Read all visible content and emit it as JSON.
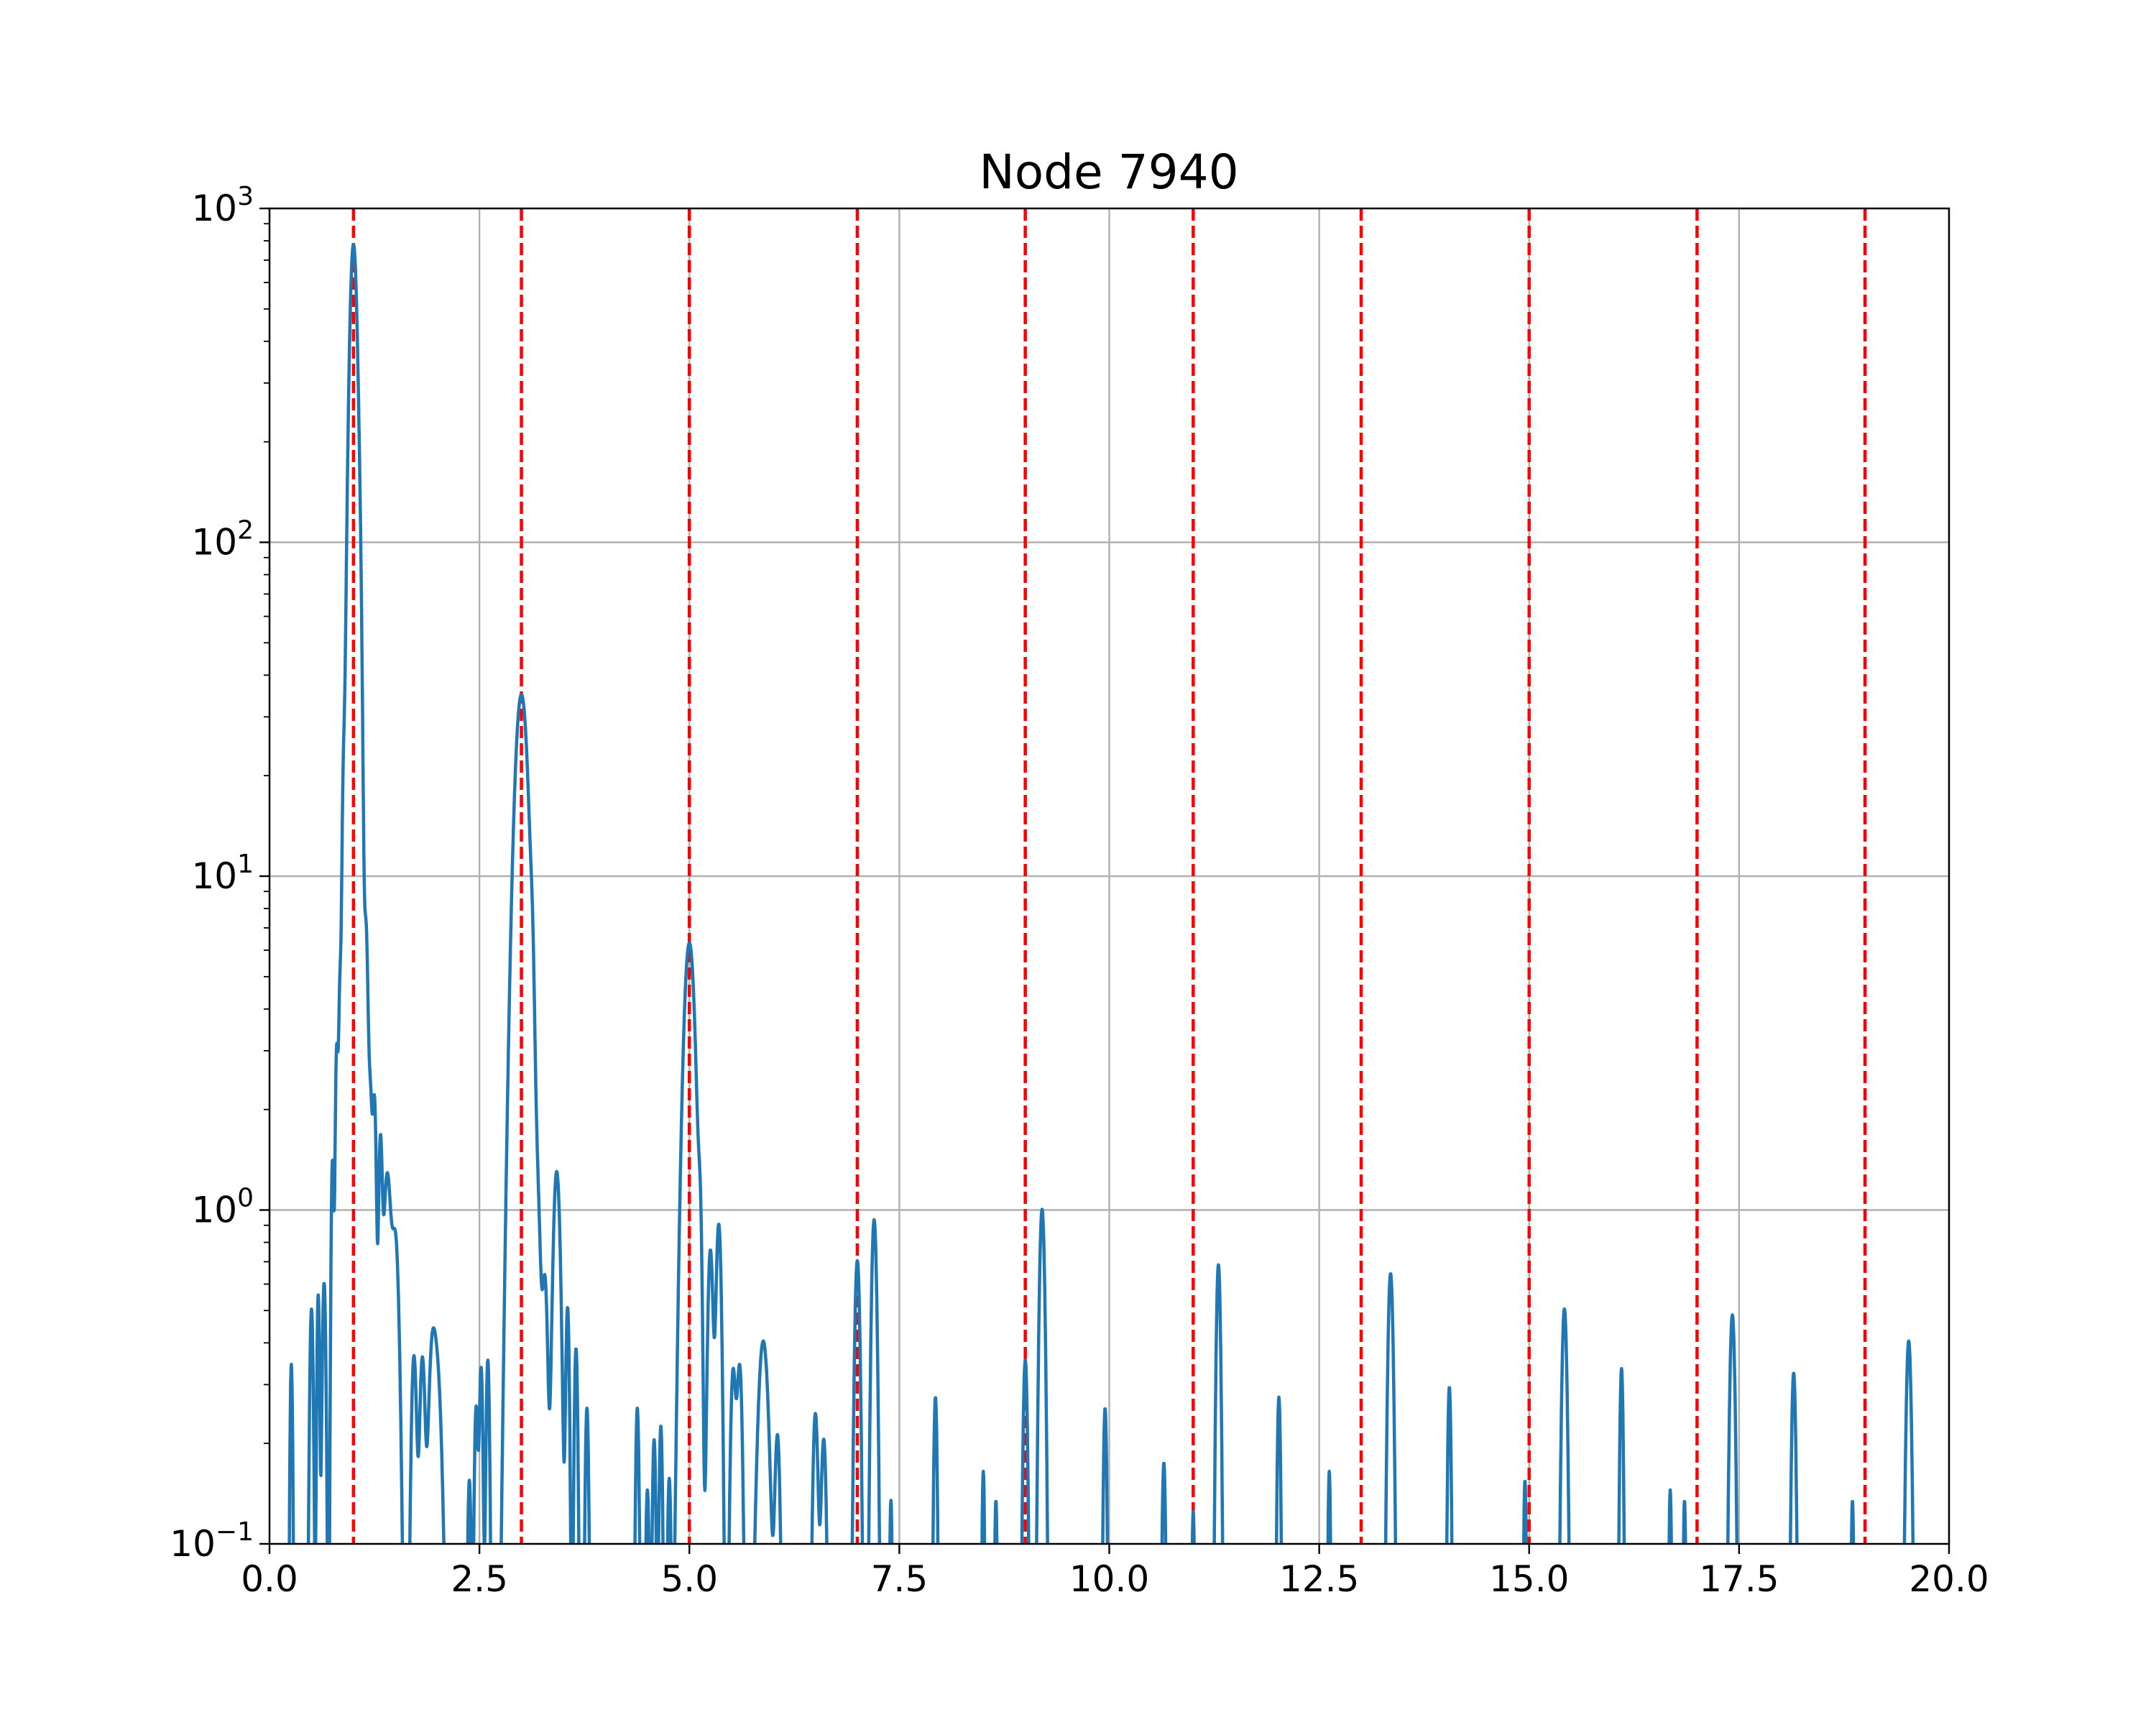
{
  "chart_data": {
    "type": "line",
    "title": "Node 7940",
    "xlabel": "",
    "ylabel": "",
    "xlim": [
      0,
      20
    ],
    "ylim": [
      0.1,
      1000
    ],
    "yscale": "log",
    "grid": true,
    "legend": "none",
    "x_ticks": [
      "0.0",
      "2.5",
      "5.0",
      "7.5",
      "10.0",
      "12.5",
      "15.0",
      "17.5",
      "20.0"
    ],
    "x_tick_values": [
      0,
      2.5,
      5,
      7.5,
      10,
      12.5,
      15,
      17.5,
      20
    ],
    "y_ticks": [
      {
        "base": "10",
        "exp": "−1",
        "value": 0.1
      },
      {
        "base": "10",
        "exp": "0",
        "value": 1
      },
      {
        "base": "10",
        "exp": "1",
        "value": 10
      },
      {
        "base": "10",
        "exp": "2",
        "value": 100
      },
      {
        "base": "10",
        "exp": "3",
        "value": 1000
      }
    ],
    "vlines": {
      "x": [
        1,
        3,
        5,
        7,
        9,
        11,
        13,
        15,
        17,
        19
      ],
      "color": "#ff0000",
      "style": "dashed"
    },
    "series": [
      {
        "color": "#1f77b4",
        "x": [
          0.2,
          0.24,
          0.28,
          0.32,
          0.4,
          0.45,
          0.5,
          0.53,
          0.56,
          0.6,
          0.63,
          0.66,
          0.7,
          0.72,
          0.74,
          0.78,
          0.8,
          0.83,
          0.86,
          0.89,
          0.92,
          0.95,
          0.97,
          1.0,
          1.02,
          1.05,
          1.08,
          1.1,
          1.13,
          1.16,
          1.18,
          1.2,
          1.23,
          1.26,
          1.29,
          1.32,
          1.35,
          1.4,
          1.45,
          1.5,
          1.53,
          1.57,
          1.6,
          1.65,
          1.72,
          1.77,
          1.82,
          1.86,
          1.9,
          1.95,
          2.0,
          2.05,
          2.1,
          2.15,
          2.2,
          2.3,
          2.38,
          2.42,
          2.46,
          2.5,
          2.54,
          2.58,
          2.62,
          2.66,
          2.7,
          2.75,
          2.8,
          2.85,
          2.9,
          2.95,
          3.0,
          3.05,
          3.1,
          3.15,
          3.2,
          3.25,
          3.3,
          3.35,
          3.4,
          3.45,
          3.5,
          3.55,
          3.6,
          3.65,
          3.7,
          3.75,
          3.8,
          3.85,
          3.9,
          3.95,
          4.0,
          4.1,
          4.3,
          4.38,
          4.42,
          4.46,
          4.5,
          4.55,
          4.6,
          4.65,
          4.7,
          4.75,
          4.8,
          4.86,
          4.9,
          4.95,
          5.0,
          5.03,
          5.06,
          5.1,
          5.15,
          5.2,
          5.25,
          5.3,
          5.35,
          5.4,
          5.45,
          5.5,
          5.55,
          5.6,
          5.65,
          5.7,
          5.75,
          5.8,
          5.85,
          5.9,
          5.95,
          6.0,
          6.05,
          6.1,
          6.15,
          6.2,
          6.3,
          6.38,
          6.45,
          6.5,
          6.55,
          6.6,
          6.65,
          6.72,
          6.8,
          6.86,
          6.9,
          6.95,
          7.0,
          7.05,
          7.1,
          7.15,
          7.2,
          7.25,
          7.3,
          7.4,
          7.44,
          7.5,
          7.7,
          7.85,
          7.9,
          7.93,
          7.97,
          8.0,
          8.3,
          8.45,
          8.5,
          8.53,
          8.57,
          8.65,
          8.7,
          8.8,
          8.9,
          8.95,
          9.0,
          9.05,
          9.1,
          9.15,
          9.2,
          9.25,
          9.3,
          9.35,
          9.4,
          9.45,
          9.5,
          9.55,
          9.6,
          9.7,
          9.8,
          9.9,
          9.95,
          10.0,
          10.05,
          10.1,
          10.5,
          10.6,
          10.65,
          10.7,
          10.8,
          10.95,
          11.0,
          11.05,
          11.15,
          11.25,
          11.3,
          11.35,
          11.45,
          11.6,
          11.85,
          11.95,
          12.0,
          12.05,
          12.1,
          12.3,
          12.55,
          12.6,
          12.65,
          12.7,
          12.8,
          13.2,
          13.28,
          13.33,
          13.38,
          13.45,
          13.5,
          13.55,
          13.6,
          13.7,
          13.9,
          14.0,
          14.05,
          14.1,
          14.15,
          14.3,
          14.5,
          14.9,
          14.95,
          15.0,
          15.05,
          15.1,
          15.3,
          15.35,
          15.4,
          15.45,
          15.55,
          15.9,
          15.98,
          16.02,
          16.08,
          16.12,
          16.18,
          16.25,
          16.5,
          16.65,
          16.7,
          16.75,
          16.8,
          16.85,
          16.9,
          17.0,
          17.25,
          17.35,
          17.4,
          17.45,
          17.5,
          17.55,
          17.6,
          17.9,
          18.05,
          18.1,
          18.15,
          18.2,
          18.35,
          18.7,
          18.8,
          18.9,
          19.0,
          19.4,
          19.47,
          19.52,
          19.57,
          19.65,
          19.8
        ]
      }
    ]
  }
}
